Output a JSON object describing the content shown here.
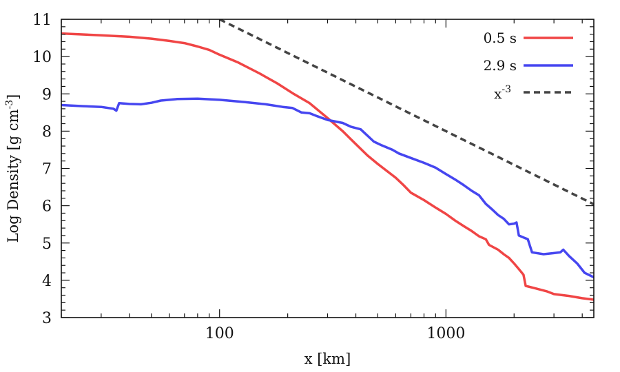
{
  "chart_data": {
    "type": "line",
    "title": "",
    "xlabel": "x [km]",
    "ylabel": "Log Density [g cm",
    "ylabel_exp": "-3",
    "ylabel_close": "]",
    "xscale": "log",
    "xlim": [
      20,
      4500
    ],
    "ylim": [
      3,
      11
    ],
    "xticks": [
      100,
      1000
    ],
    "xtick_labels": [
      "100",
      "1000"
    ],
    "yticks": [
      3,
      4,
      5,
      6,
      7,
      8,
      9,
      10,
      11
    ],
    "ytick_labels": [
      "3",
      "4",
      "5",
      "6",
      "7",
      "8",
      "9",
      "10",
      "11"
    ],
    "grid": false,
    "legend_position": "top-right",
    "series": [
      {
        "name": "0.5 s",
        "color": "#f04545",
        "style": "solid",
        "points": [
          [
            20,
            10.62
          ],
          [
            30,
            10.57
          ],
          [
            40,
            10.53
          ],
          [
            50,
            10.48
          ],
          [
            60,
            10.42
          ],
          [
            70,
            10.36
          ],
          [
            80,
            10.27
          ],
          [
            90,
            10.18
          ],
          [
            100,
            10.05
          ],
          [
            120,
            9.85
          ],
          [
            150,
            9.55
          ],
          [
            180,
            9.28
          ],
          [
            210,
            9.02
          ],
          [
            250,
            8.75
          ],
          [
            300,
            8.35
          ],
          [
            350,
            8.0
          ],
          [
            400,
            7.65
          ],
          [
            450,
            7.35
          ],
          [
            500,
            7.12
          ],
          [
            600,
            6.75
          ],
          [
            650,
            6.55
          ],
          [
            700,
            6.35
          ],
          [
            800,
            6.15
          ],
          [
            900,
            5.95
          ],
          [
            1000,
            5.78
          ],
          [
            1100,
            5.6
          ],
          [
            1200,
            5.45
          ],
          [
            1300,
            5.32
          ],
          [
            1400,
            5.18
          ],
          [
            1500,
            5.1
          ],
          [
            1550,
            4.95
          ],
          [
            1700,
            4.82
          ],
          [
            1800,
            4.7
          ],
          [
            1900,
            4.6
          ],
          [
            2000,
            4.45
          ],
          [
            2100,
            4.3
          ],
          [
            2200,
            4.15
          ],
          [
            2250,
            3.85
          ],
          [
            2500,
            3.78
          ],
          [
            2800,
            3.7
          ],
          [
            3000,
            3.63
          ],
          [
            3500,
            3.58
          ],
          [
            4000,
            3.52
          ],
          [
            4500,
            3.48
          ]
        ]
      },
      {
        "name": "2.9 s",
        "color": "#4646f0",
        "style": "solid",
        "points": [
          [
            20,
            8.7
          ],
          [
            25,
            8.67
          ],
          [
            30,
            8.65
          ],
          [
            34,
            8.6
          ],
          [
            35,
            8.55
          ],
          [
            36,
            8.75
          ],
          [
            40,
            8.73
          ],
          [
            45,
            8.72
          ],
          [
            50,
            8.76
          ],
          [
            55,
            8.82
          ],
          [
            65,
            8.86
          ],
          [
            80,
            8.87
          ],
          [
            100,
            8.84
          ],
          [
            130,
            8.78
          ],
          [
            160,
            8.72
          ],
          [
            190,
            8.65
          ],
          [
            210,
            8.62
          ],
          [
            230,
            8.5
          ],
          [
            250,
            8.48
          ],
          [
            270,
            8.4
          ],
          [
            300,
            8.3
          ],
          [
            350,
            8.22
          ],
          [
            380,
            8.12
          ],
          [
            420,
            8.05
          ],
          [
            450,
            7.88
          ],
          [
            480,
            7.72
          ],
          [
            520,
            7.62
          ],
          [
            580,
            7.5
          ],
          [
            620,
            7.4
          ],
          [
            700,
            7.28
          ],
          [
            800,
            7.15
          ],
          [
            900,
            7.02
          ],
          [
            1000,
            6.85
          ],
          [
            1100,
            6.7
          ],
          [
            1200,
            6.55
          ],
          [
            1300,
            6.4
          ],
          [
            1400,
            6.28
          ],
          [
            1500,
            6.05
          ],
          [
            1600,
            5.9
          ],
          [
            1700,
            5.75
          ],
          [
            1800,
            5.65
          ],
          [
            1900,
            5.5
          ],
          [
            2000,
            5.52
          ],
          [
            2050,
            5.55
          ],
          [
            2100,
            5.2
          ],
          [
            2300,
            5.1
          ],
          [
            2400,
            4.75
          ],
          [
            2700,
            4.7
          ],
          [
            3000,
            4.73
          ],
          [
            3200,
            4.75
          ],
          [
            3300,
            4.82
          ],
          [
            3500,
            4.65
          ],
          [
            3800,
            4.45
          ],
          [
            4100,
            4.2
          ],
          [
            4500,
            4.08
          ]
        ]
      },
      {
        "name": "x",
        "name_exp": "-3",
        "color": "#444444",
        "style": "dashed",
        "points": [
          [
            100,
            11.0
          ],
          [
            4500,
            6.04
          ]
        ]
      }
    ]
  }
}
